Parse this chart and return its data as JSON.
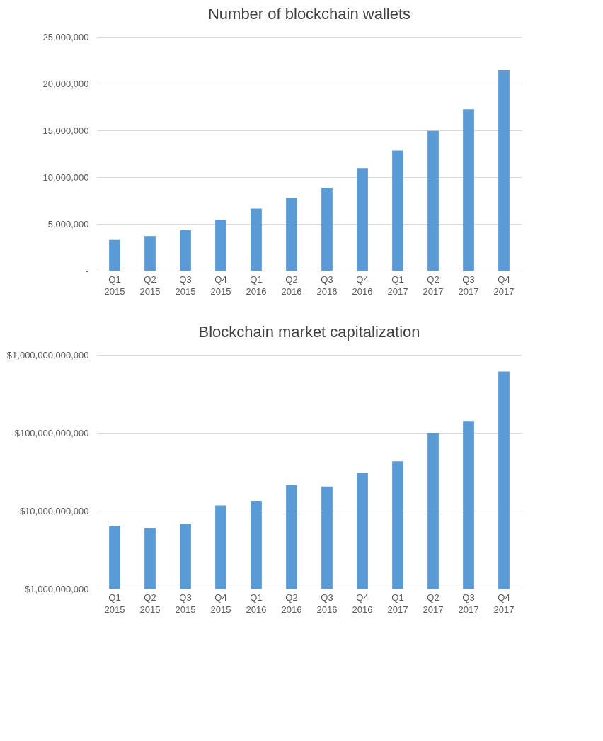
{
  "chart_data": [
    {
      "type": "bar",
      "title": "Number of blockchain wallets",
      "categories": [
        "Q1 2015",
        "Q2 2015",
        "Q3 2015",
        "Q4 2015",
        "Q1 2016",
        "Q2 2016",
        "Q3 2016",
        "Q4 2016",
        "Q1 2017",
        "Q2 2017",
        "Q3 2017",
        "Q4 2017"
      ],
      "values": [
        3280000,
        3700000,
        4330000,
        5450000,
        6630000,
        7750000,
        8870000,
        10960000,
        12850000,
        14940000,
        17250000,
        21440000
      ],
      "color": "#5b9bd5",
      "ylim": [
        0,
        25000000
      ],
      "yticks": [
        {
          "value": 0,
          "label": "-"
        },
        {
          "value": 5000000,
          "label": "5,000,000"
        },
        {
          "value": 10000000,
          "label": "10,000,000"
        },
        {
          "value": 15000000,
          "label": "15,000,000"
        },
        {
          "value": 20000000,
          "label": "20,000,000"
        },
        {
          "value": 25000000,
          "label": "25,000,000"
        }
      ],
      "grid": "y"
    },
    {
      "type": "bar",
      "title": "Blockchain market capitalization",
      "categories": [
        "Q1 2015",
        "Q2 2015",
        "Q3 2015",
        "Q4 2015",
        "Q1 2016",
        "Q2 2016",
        "Q3 2016",
        "Q4 2016",
        "Q1 2017",
        "Q2 2017",
        "Q3 2017",
        "Q4 2017"
      ],
      "values": [
        6400000000,
        6000000000,
        6800000000,
        11700000000,
        13400000000,
        21400000000,
        20500000000,
        30500000000,
        43000000000,
        100000000000,
        142000000000,
        610000000000
      ],
      "color": "#5b9bd5",
      "ylim": [
        1000000000,
        1000000000000
      ],
      "log": true,
      "yticks": [
        {
          "value": 1000000000,
          "label": "$1,000,000,000"
        },
        {
          "value": 10000000000,
          "label": "$10,000,000,000"
        },
        {
          "value": 100000000000,
          "label": "$100,000,000,000"
        },
        {
          "value": 1000000000000,
          "label": "$1,000,000,000,000"
        }
      ],
      "grid": "y"
    }
  ]
}
